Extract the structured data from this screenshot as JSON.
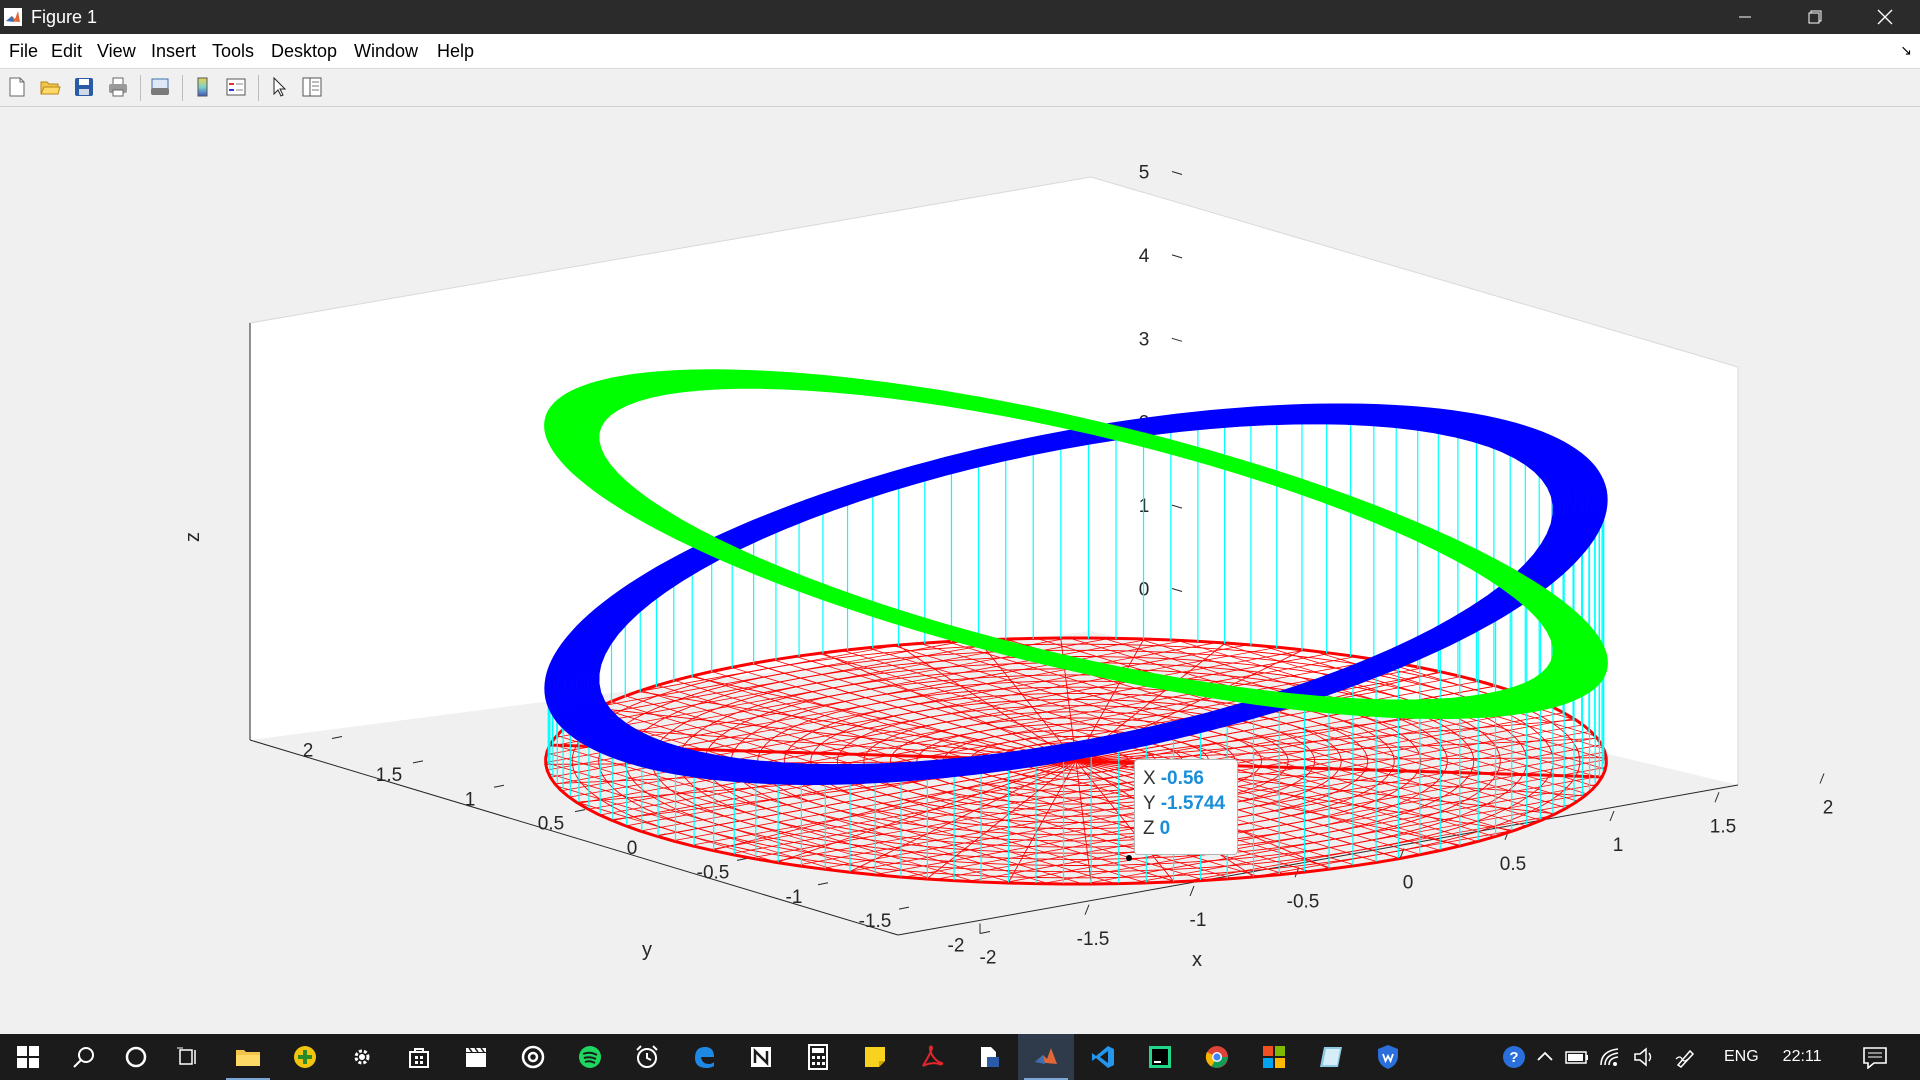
{
  "window": {
    "title": "Figure 1"
  },
  "menu": {
    "items": [
      "File",
      "Edit",
      "View",
      "Insert",
      "Tools",
      "Desktop",
      "Window",
      "Help"
    ]
  },
  "toolbar": {
    "buttons": [
      "new-figure-icon",
      "open-file-icon",
      "save-icon",
      "print-icon",
      "print-preview-icon",
      "colorbar-icon",
      "legend-icon",
      "edit-plot-arrow-icon",
      "property-inspector-icon"
    ]
  },
  "plot": {
    "axis_labels": {
      "x": "x",
      "y": "y",
      "z": "z"
    },
    "x_ticks": [
      "-2",
      "-1.5",
      "-1",
      "-0.5",
      "0",
      "0.5",
      "1",
      "1.5",
      "2"
    ],
    "y_ticks": [
      "-2",
      "-1.5",
      "-1",
      "-0.5",
      "0",
      "0.5",
      "1",
      "1.5",
      "2"
    ],
    "z_ticks": [
      "0",
      "1",
      "2",
      "3",
      "4",
      "5"
    ],
    "colors": {
      "disk_mesh": "#ff0000",
      "blue_ellipse": "#0000ff",
      "green_ellipse": "#00ff00",
      "stems": "#00ffff",
      "axes": "#262626"
    }
  },
  "datatip": {
    "x_label": "X",
    "x_value": "-0.56",
    "y_label": "Y",
    "y_value": "-1.5744",
    "z_label": "Z",
    "z_value": "0"
  },
  "taskbar": {
    "apps": [
      "windows-start-icon",
      "search-icon",
      "cortana-icon",
      "task-view-icon",
      "file-explorer-icon",
      "app-plus-icon",
      "settings-icon",
      "store-icon",
      "video-editor-icon",
      "media-player-icon",
      "spotify-icon",
      "alarms-icon",
      "edge-icon",
      "notion-icon",
      "calculator-icon",
      "sticky-notes-icon",
      "acrobat-icon",
      "file-converter-icon",
      "matlab-icon",
      "vscode-icon",
      "pycharm-icon",
      "chrome-icon",
      "colorful-app-icon",
      "paint-app-icon",
      "vpn-shield-icon"
    ],
    "tray": {
      "language": "ENG",
      "time": "22:11"
    }
  }
}
